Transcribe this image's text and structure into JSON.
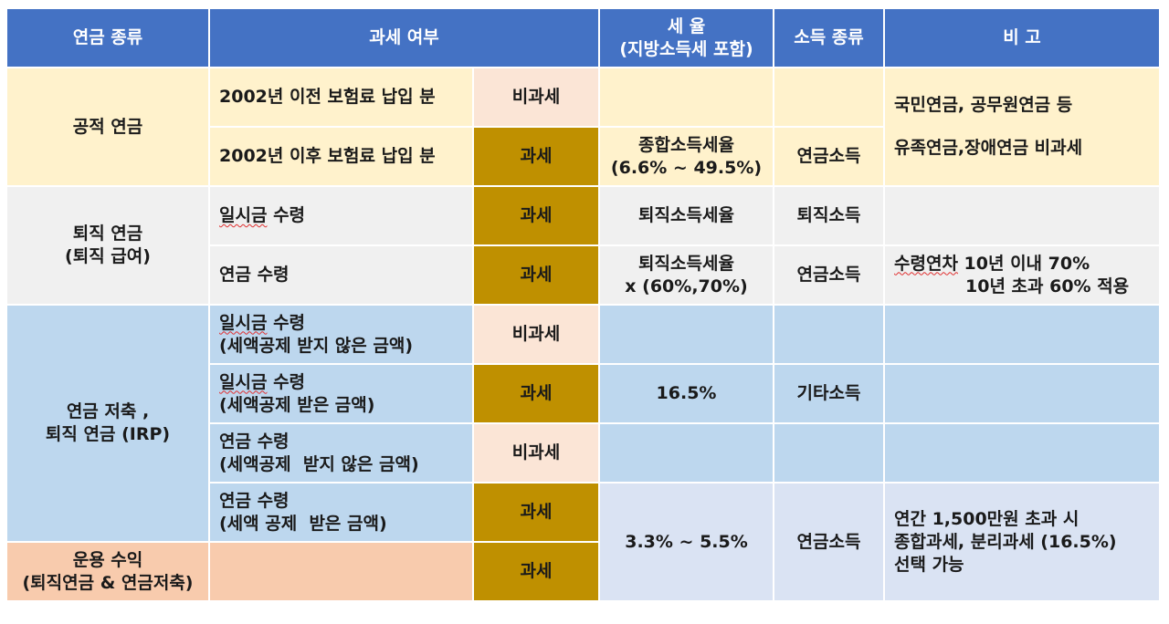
{
  "headers": {
    "type": "연금 종류",
    "taxable": "과세 여부",
    "rate_line1": "세 율",
    "rate_line2": "(지방소득세 포함)",
    "income": "소득 종류",
    "note": "비 고"
  },
  "public": {
    "label": "공적 연금",
    "r1_desc": "2002년 이전 보험료 납입 분",
    "r1_tax": "비과세",
    "r2_desc": "2002년 이후 보험료 납입 분",
    "r2_tax": "과세",
    "r2_rate_line1": "종합소득세율",
    "r2_rate_line2": "(6.6% ~ 49.5%)",
    "r2_income": "연금소득",
    "note_line1": "국민연금, 공무원연금 등",
    "note_line2": "유족연금,장애연금 비과세"
  },
  "retire": {
    "label_line1": "퇴직 연금",
    "label_line2": "(퇴직 급여)",
    "r1_desc_a": "일시금",
    "r1_desc_b": " 수령",
    "r1_tax": "과세",
    "r1_rate": "퇴직소득세율",
    "r1_income": "퇴직소득",
    "r2_desc": "연금 수령",
    "r2_tax": "과세",
    "r2_rate_line1": "퇴직소득세율",
    "r2_rate_line2": "x (60%,70%)",
    "r2_income": "연금소득",
    "note_line1_a": "수령연차",
    "note_line1_b": " 10년 이내 70%",
    "note_line2": "10년 초과 60% 적용"
  },
  "savings": {
    "label_line1": "연금 저축 ,",
    "label_line2": "퇴직 연금 (IRP)",
    "r1_desc_a": "일시금",
    "r1_desc_b": " 수령",
    "r1_desc_line2": "(세액공제 받지 않은 금액)",
    "r1_tax": "비과세",
    "r2_desc_a": "일시금",
    "r2_desc_b": " 수령",
    "r2_desc_line2": "(세액공제 받은 금액)",
    "r2_tax": "과세",
    "r2_rate": "16.5%",
    "r2_income": "기타소득",
    "r3_desc": "연금 수령",
    "r3_desc_line2": "(세액공제  받지 않은 금액)",
    "r3_tax": "비과세",
    "r4_desc": "연금 수령",
    "r4_desc_line2": "(세액 공제  받은 금액)",
    "r4_tax": "과세",
    "rate_shared": "3.3% ~ 5.5%",
    "income_shared": "연금소득",
    "note_line1": "연간 1,500만원 초과 시",
    "note_line2": "종합과세, 분리과세 (16.5%)",
    "note_line3": "선택 가능"
  },
  "returns": {
    "label_line1": "운용 수익",
    "label_line2": "(퇴직연금 & 연금저축)",
    "tax": "과세"
  }
}
